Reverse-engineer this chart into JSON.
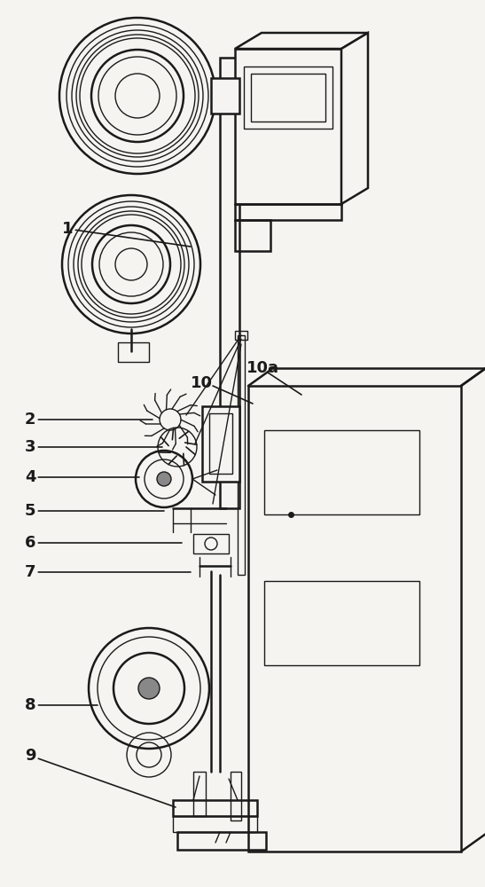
{
  "bg_color": "#f5f4f0",
  "line_color": "#1a1a1a",
  "lw_thin": 1.0,
  "lw_med": 1.8,
  "lw_thick": 2.5
}
